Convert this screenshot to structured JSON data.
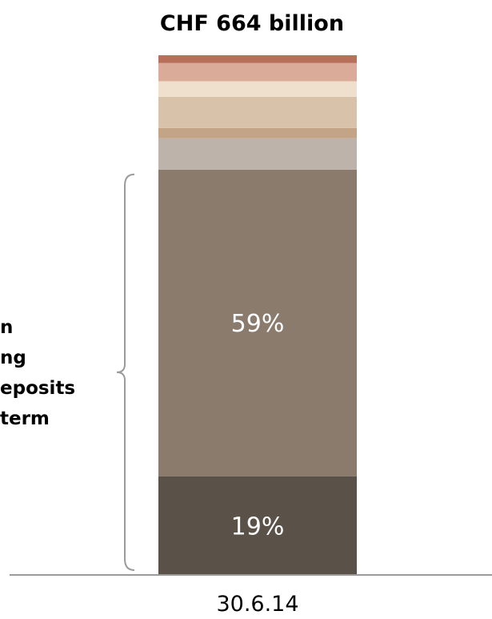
{
  "chart_data": {
    "type": "bar",
    "stacked": true,
    "categories": [
      "30.6.14"
    ],
    "total_label": "CHF 664 billion",
    "ylim": [
      0,
      100
    ],
    "unit": "%",
    "series": [
      {
        "values": [
          19
        ],
        "color": "#5a5248",
        "label": "19%"
      },
      {
        "values": [
          59
        ],
        "color": "#8a7b6d",
        "label": "59%"
      },
      {
        "values": [
          6
        ],
        "color": "#bdb3ab",
        "label": ""
      },
      {
        "values": [
          2
        ],
        "color": "#c4a487",
        "label": ""
      },
      {
        "values": [
          6
        ],
        "color": "#d8c3aa",
        "label": ""
      },
      {
        "values": [
          3
        ],
        "color": "#efe0ce",
        "label": ""
      },
      {
        "values": [
          3.5
        ],
        "color": "#d9ab98",
        "label": ""
      },
      {
        "values": [
          1.5
        ],
        "color": "#b8705a",
        "label": ""
      }
    ],
    "bracket": {
      "lines": [
        "n",
        "ng",
        "eposits",
        "term"
      ],
      "covers_segments": [
        0,
        1
      ]
    },
    "colors": {
      "axis": "#9b9b9b",
      "bracket": "#9b9b9b"
    }
  }
}
